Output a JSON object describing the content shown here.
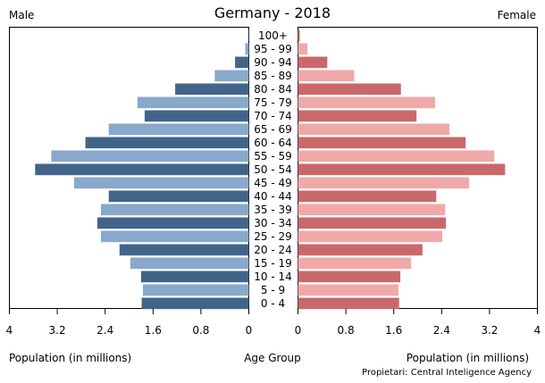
{
  "chart_data": {
    "type": "bar",
    "orientation": "horizontal-pyramid",
    "title": "Germany - 2018",
    "left_label": "Male",
    "right_label": "Female",
    "xlabel_left": "Population (in millions)",
    "xlabel_center": "Age Group",
    "xlabel_right": "Population (in millions)",
    "source": "Propietari: Central Inteligence Agency",
    "xlim": [
      0,
      4
    ],
    "ticks": [
      0,
      0.8,
      1.6,
      2.4,
      3.2,
      4
    ],
    "tick_labels": [
      "0",
      "0.8",
      "1.6",
      "2.4",
      "3.2",
      "4"
    ],
    "categories": [
      "100+",
      "95 - 99",
      "90 - 94",
      "85 - 89",
      "80 - 84",
      "75 - 79",
      "70 - 74",
      "65 - 69",
      "60 - 64",
      "55 - 59",
      "50 - 54",
      "45 - 49",
      "40 - 44",
      "35 - 39",
      "30 - 34",
      "25 - 29",
      "20 - 24",
      "15 - 19",
      "10 - 14",
      "5 - 9",
      "0 - 4"
    ],
    "series": [
      {
        "name": "Male",
        "values": [
          0.01,
          0.06,
          0.23,
          0.57,
          1.23,
          1.86,
          1.74,
          2.34,
          2.73,
          3.3,
          3.57,
          2.92,
          2.34,
          2.47,
          2.53,
          2.47,
          2.16,
          1.98,
          1.8,
          1.77,
          1.79
        ]
      },
      {
        "name": "Female",
        "values": [
          0.03,
          0.16,
          0.49,
          0.94,
          1.72,
          2.29,
          1.98,
          2.53,
          2.8,
          3.28,
          3.46,
          2.86,
          2.31,
          2.46,
          2.47,
          2.41,
          2.08,
          1.89,
          1.71,
          1.68,
          1.69
        ]
      }
    ],
    "colors": {
      "male_dark": "#43648a",
      "male_light": "#88a8cc",
      "female_dark": "#c9686a",
      "female_light": "#efa9a9"
    }
  }
}
